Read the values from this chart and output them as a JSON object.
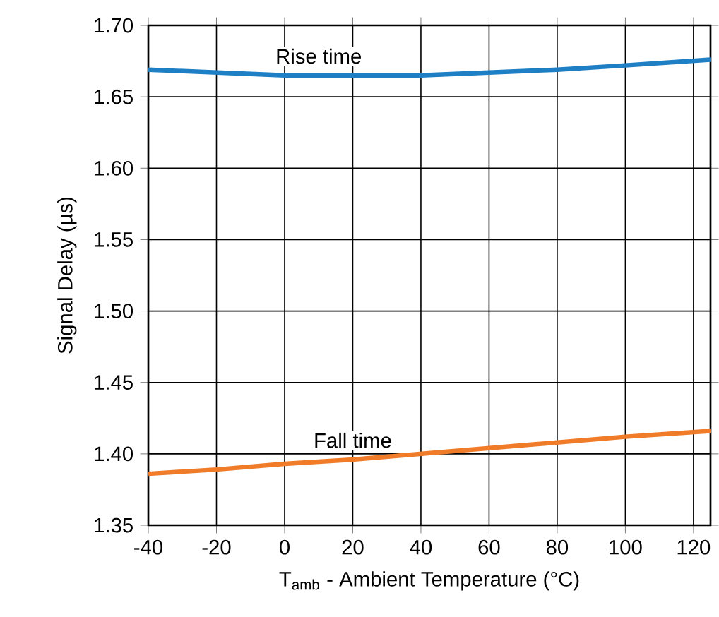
{
  "chart_data": {
    "type": "line",
    "xlabel": "T$_{amb}$ - Ambient Temperature (°C)",
    "ylabel": "Signal Delay (µs)",
    "x": [
      -40,
      -20,
      0,
      20,
      40,
      60,
      80,
      100,
      125
    ],
    "series": [
      {
        "color": "#1f7fc4",
        "values": [
          1.669,
          1.667,
          1.665,
          1.665,
          1.665,
          1.667,
          1.669,
          1.672,
          1.676
        ]
      },
      {
        "color": "#f07c2a",
        "values": [
          1.386,
          1.389,
          1.393,
          1.396,
          1.4,
          1.404,
          1.408,
          1.412,
          1.416
        ]
      }
    ],
    "annotations": [
      {
        "text": "Rise time",
        "x": 10,
        "y": 1.665
      },
      {
        "text": "Fall time",
        "x": 20,
        "y": 1.396
      }
    ],
    "xlim": [
      -40,
      125
    ],
    "ylim": [
      1.35,
      1.7
    ],
    "xticks": [
      -40,
      -20,
      0,
      20,
      40,
      60,
      80,
      100,
      120
    ],
    "yticks": [
      {
        "value": 1.35,
        "label": "1.35"
      },
      {
        "value": 1.4,
        "label": "1.40"
      },
      {
        "value": 1.45,
        "label": "1.45"
      },
      {
        "value": 1.5,
        "label": "1.50"
      },
      {
        "value": 1.55,
        "label": "1.55"
      },
      {
        "value": 1.6,
        "label": "1.60"
      },
      {
        "value": 1.65,
        "label": "1.65"
      },
      {
        "value": 1.7,
        "label": "1.70"
      }
    ],
    "grid": true,
    "line_style": "solid",
    "marker": "none"
  }
}
